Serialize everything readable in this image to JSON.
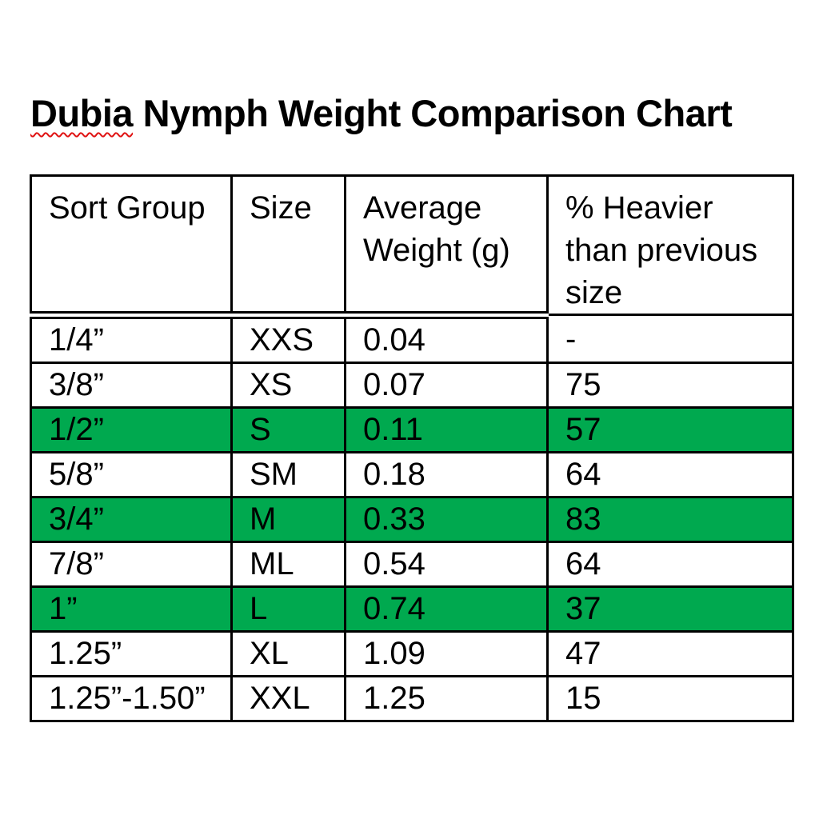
{
  "page": {
    "background_color": "#ffffff",
    "text_color": "#000000"
  },
  "title": {
    "full": "Dubia Nymph Weight Comparison Chart",
    "misspelled_word": "Dubia",
    "rest_of_title": " Nymph Weight Comparison Chart",
    "spellcheck_underline_color": "#e01313"
  },
  "table": {
    "headers": [
      "Sort Group",
      "Size",
      "Average Weight (g)",
      "% Heavier than previous size"
    ],
    "border_color": "#000000",
    "highlight_color": "#00a94f",
    "rows": [
      {
        "cells": [
          "1/4”",
          "XXS",
          "0.04",
          "-"
        ],
        "highlighted": false
      },
      {
        "cells": [
          "3/8”",
          "XS",
          "0.07",
          "75"
        ],
        "highlighted": false
      },
      {
        "cells": [
          "1/2”",
          "S",
          "0.11",
          "57"
        ],
        "highlighted": true
      },
      {
        "cells": [
          "5/8”",
          "SM",
          "0.18",
          "64"
        ],
        "highlighted": false
      },
      {
        "cells": [
          "3/4”",
          "M",
          "0.33",
          "83"
        ],
        "highlighted": true
      },
      {
        "cells": [
          "7/8”",
          "ML",
          "0.54",
          "64"
        ],
        "highlighted": false
      },
      {
        "cells": [
          "1”",
          "L",
          "0.74",
          "37"
        ],
        "highlighted": true
      },
      {
        "cells": [
          "1.25”",
          "XL",
          "1.09",
          "47"
        ],
        "highlighted": false
      },
      {
        "cells": [
          "1.25”-1.50”",
          "XXL",
          "1.25",
          "15"
        ],
        "highlighted": false
      }
    ]
  },
  "chart_data": {
    "type": "table",
    "title": "Dubia Nymph Weight Comparison Chart",
    "columns": [
      "Sort Group",
      "Size",
      "Average Weight (g)",
      "% Heavier than previous size"
    ],
    "sort_groups": [
      "1/4”",
      "3/8”",
      "1/2”",
      "5/8”",
      "3/4”",
      "7/8”",
      "1”",
      "1.25”",
      "1.25”-1.50”"
    ],
    "sizes": [
      "XXS",
      "XS",
      "S",
      "SM",
      "M",
      "ML",
      "L",
      "XL",
      "XXL"
    ],
    "average_weight_g": [
      0.04,
      0.07,
      0.11,
      0.18,
      0.33,
      0.54,
      0.74,
      1.09,
      1.25
    ],
    "pct_heavier_than_previous": [
      null,
      75,
      57,
      64,
      83,
      64,
      37,
      47,
      15
    ],
    "highlighted_sizes": [
      "S",
      "M",
      "L"
    ],
    "highlight_color": "#00a94f"
  }
}
